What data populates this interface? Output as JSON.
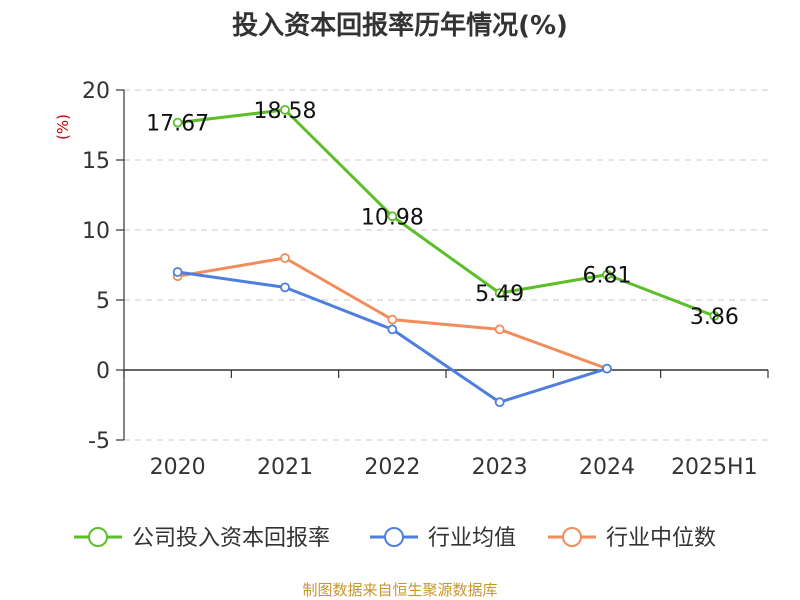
{
  "chart_data": {
    "type": "line",
    "title": "投入资本回报率历年情况(%)",
    "ylabel": "(%)",
    "xlabel": "",
    "categories": [
      "2020",
      "2021",
      "2022",
      "2023",
      "2024",
      "2025H1"
    ],
    "ylim": [
      -5,
      20
    ],
    "yticks": [
      "-5",
      "0",
      "5",
      "10",
      "15",
      "20"
    ],
    "grid": true,
    "legend_position": "bottom",
    "series": [
      {
        "name": "公司投入资本回报率",
        "color": "#5cbf2a",
        "values": [
          17.67,
          18.58,
          10.98,
          5.49,
          6.81,
          3.86
        ],
        "labels": [
          "17.67",
          "18.58",
          "10.98",
          "5.49",
          "6.81",
          "3.86"
        ]
      },
      {
        "name": "行业均值",
        "color": "#4f7fde",
        "values": [
          7.0,
          5.9,
          2.9,
          -2.3,
          0.1,
          null
        ]
      },
      {
        "name": "行业中位数",
        "color": "#f28c5a",
        "values": [
          6.7,
          8.0,
          3.6,
          2.9,
          0.1,
          null
        ]
      }
    ],
    "source": "制图数据来自恒生聚源数据库"
  }
}
